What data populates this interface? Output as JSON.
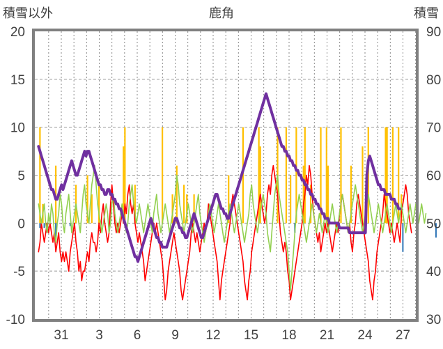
{
  "chart_data": {
    "type": "line",
    "title": "鹿角",
    "left_axis_label": "積雪以外",
    "right_axis_label": "積雪",
    "left_ylim": [
      -10,
      20
    ],
    "right_ylim": [
      30,
      90
    ],
    "left_yticks": [
      20,
      15,
      10,
      5,
      0,
      -5,
      -10
    ],
    "right_yticks": [
      90,
      80,
      70,
      60,
      50,
      40,
      30
    ],
    "x_ticks": [
      "31",
      "3",
      "6",
      "9",
      "12",
      "15",
      "18",
      "21",
      "24",
      "27"
    ],
    "grid": "dashed horizontal at major ticks, dotted vertical daily",
    "colors": {
      "snowfall": "#FFC000",
      "precipitation": "#2E75B6",
      "temp_max": "#FF0000",
      "temp_mean": "#92D050",
      "snow_depth": "#7030A0"
    },
    "series": [
      {
        "key": "snowfall",
        "type": "bar",
        "axis": "left",
        "values": [
          0,
          10,
          0,
          2,
          0,
          0,
          0,
          0,
          0,
          0,
          0,
          0,
          6,
          0,
          0,
          0,
          0,
          0,
          0,
          0,
          0,
          0,
          0,
          0,
          0,
          0,
          4,
          0,
          0,
          0,
          0,
          0,
          0,
          0,
          5,
          0,
          0,
          3,
          0,
          0,
          0,
          0,
          4,
          0,
          0,
          0,
          0,
          0,
          0,
          0,
          0,
          0,
          0,
          0,
          0,
          0,
          0,
          0,
          0,
          8,
          10,
          0,
          0,
          0,
          0,
          0,
          0,
          4,
          0,
          0,
          0,
          0,
          0,
          0,
          0,
          0,
          0,
          0,
          0,
          0,
          0,
          0,
          0,
          0,
          0,
          0,
          10,
          0,
          0,
          0,
          0,
          0,
          0,
          3,
          0,
          0,
          6,
          0,
          0,
          0,
          0,
          4,
          0,
          3,
          0,
          0,
          0,
          0,
          3,
          0,
          0,
          0,
          0,
          0,
          0,
          0,
          0,
          0,
          0,
          0,
          0,
          0,
          0,
          0,
          0,
          0,
          0,
          0,
          0,
          0,
          0,
          0,
          5,
          0,
          0,
          0,
          0,
          0,
          0,
          0,
          0,
          0,
          10,
          0,
          0,
          0,
          0,
          0,
          0,
          0,
          0,
          0,
          0,
          10,
          8,
          0,
          0,
          0,
          0,
          0,
          0,
          0,
          0,
          0,
          0,
          0,
          10,
          0,
          0,
          0,
          0,
          0,
          10,
          0,
          0,
          5,
          0,
          0,
          0,
          10,
          0,
          0,
          0,
          0,
          6,
          10,
          0,
          0,
          0,
          4,
          0,
          0,
          0,
          0,
          0,
          0,
          10,
          0,
          0,
          0,
          10,
          6,
          0,
          0,
          0,
          0,
          0,
          0,
          0,
          0,
          10,
          0,
          0,
          0,
          0,
          0,
          0,
          6,
          0,
          0,
          0,
          0,
          0,
          0,
          0,
          8,
          0,
          0,
          0,
          10,
          0,
          0,
          0,
          0,
          0,
          0,
          0,
          0,
          0,
          0,
          0,
          10,
          10,
          0,
          0,
          0,
          10,
          0,
          0,
          0,
          10,
          0,
          3,
          0,
          0,
          0,
          0,
          0,
          0,
          0,
          0,
          0
        ]
      },
      {
        "key": "precipitation",
        "type": "bar",
        "axis": "left",
        "values": [
          0,
          -0.5,
          0,
          0,
          -0.5,
          0,
          -1,
          0,
          0,
          0,
          0,
          0,
          -1.8,
          0,
          0,
          0,
          0,
          0,
          0,
          0,
          0,
          0,
          -0.3,
          0,
          0,
          0,
          0,
          0,
          0,
          0,
          0,
          0,
          0,
          0,
          0,
          0,
          0,
          0,
          0,
          0,
          0,
          0,
          0,
          0,
          0,
          0,
          0,
          0,
          0,
          0,
          0,
          0,
          0,
          0,
          0,
          0,
          0,
          0,
          0,
          0,
          0,
          0,
          0,
          0,
          0,
          0,
          0,
          0,
          0,
          0,
          0,
          0,
          0,
          0,
          0,
          0,
          0,
          0,
          0,
          0,
          -0.6,
          0,
          0,
          0,
          0,
          0,
          0,
          0,
          0,
          0,
          0,
          0,
          0,
          0,
          0,
          0,
          0,
          0,
          0,
          0,
          0,
          0,
          0,
          0,
          0,
          0,
          0,
          0,
          0,
          0,
          0,
          0,
          0,
          0,
          0,
          0,
          0,
          0,
          0,
          0,
          0,
          0,
          0,
          0,
          0,
          0,
          0,
          0,
          0,
          0,
          0,
          0,
          0,
          0,
          0,
          0,
          0,
          0,
          0,
          0,
          0,
          0,
          0,
          0,
          0,
          0,
          0,
          0,
          0,
          0,
          0,
          0,
          0,
          0,
          0,
          0,
          0,
          0,
          0,
          0,
          0,
          0,
          0,
          0,
          0,
          0,
          0,
          0,
          0,
          0,
          0,
          0,
          0,
          0,
          0,
          0,
          0,
          0,
          -1,
          0,
          0,
          0,
          0,
          0,
          0,
          0,
          0,
          0,
          0,
          0,
          0,
          0,
          0,
          0,
          0,
          0,
          0,
          0,
          0,
          0,
          0,
          0,
          0,
          0,
          0,
          0,
          0,
          0,
          0,
          0,
          0,
          0,
          0,
          0,
          0,
          0,
          0,
          0,
          0,
          0,
          0,
          0,
          0,
          0,
          0,
          0,
          0,
          0,
          0,
          0,
          0,
          0,
          0,
          0,
          0,
          0,
          0,
          0,
          0,
          0,
          0,
          0,
          0,
          0,
          0,
          0,
          0,
          0,
          0,
          0,
          0,
          0,
          0,
          -3,
          0,
          0,
          0,
          0,
          0,
          0,
          0,
          0,
          0,
          0,
          0,
          0,
          0,
          0,
          0,
          0,
          0,
          0,
          0,
          0,
          0,
          0,
          -1.5
        ]
      },
      {
        "key": "temp_max",
        "type": "line",
        "axis": "left",
        "values": [
          -3,
          -2,
          0,
          -1,
          -2,
          -1,
          0,
          -1,
          0,
          -1,
          -2,
          -1,
          -3,
          -2,
          -1,
          -3,
          -4,
          -3,
          -4,
          -3,
          -4,
          -5,
          -3,
          -2,
          -1,
          0,
          -2,
          -3,
          -5,
          -4,
          -6,
          -5,
          -5,
          -4,
          -3,
          -4,
          -2,
          -1,
          -2,
          -2,
          -3,
          -2,
          0,
          -1,
          1,
          2,
          0,
          -1,
          -2,
          -1,
          2,
          4,
          2,
          0,
          -1,
          0,
          -1,
          0,
          1,
          0,
          2,
          1,
          3,
          4,
          2,
          1,
          2,
          0,
          -1,
          -2,
          -1,
          -2,
          -3,
          -4,
          -6,
          -5,
          -4,
          -3,
          -2,
          -1,
          0,
          -1,
          0,
          -1,
          -2,
          -3,
          -4,
          -6,
          -8,
          -7,
          -5,
          -4,
          -3,
          -2,
          -1,
          -2,
          -3,
          -4,
          -5,
          -7,
          -8,
          -7,
          -6,
          -5,
          -4,
          -3,
          -1,
          0,
          -1,
          -2,
          -1,
          -2,
          -3,
          -2,
          -1,
          0,
          -1,
          0,
          2,
          1,
          0,
          -1,
          -2,
          -3,
          -4,
          -6,
          -8,
          -6,
          -5,
          -4,
          -3,
          -2,
          -1,
          0,
          2,
          3,
          2,
          1,
          0,
          -1,
          -2,
          -3,
          -4,
          -6,
          -7,
          -8,
          -6,
          -5,
          -3,
          -2,
          -1,
          0,
          1,
          2,
          3,
          2,
          1,
          0,
          1,
          3,
          4,
          3,
          5,
          6,
          5,
          4,
          3,
          1,
          -1,
          -2,
          -3,
          -2,
          -3,
          -5,
          -6,
          -8,
          -7,
          -6,
          -5,
          -4,
          -3,
          -2,
          -1,
          0,
          2,
          3,
          5,
          4,
          6,
          5,
          3,
          1,
          0,
          -1,
          -2,
          -1,
          -3,
          -2,
          -1,
          0,
          -1,
          0,
          -1,
          -2,
          -3,
          -2,
          -1,
          0,
          -1,
          1,
          2,
          3,
          2,
          1,
          0,
          -1,
          0,
          -2,
          -3,
          -1,
          0,
          2,
          3,
          2,
          1,
          0,
          -1,
          -2,
          -3,
          -4,
          -6,
          -7,
          -8,
          -6,
          -5,
          -3,
          -2,
          -1,
          0,
          1,
          3,
          2,
          1,
          0,
          -1,
          0,
          -1,
          -2,
          -1,
          0,
          -1,
          -2,
          1,
          2,
          3,
          4,
          3,
          1,
          0,
          -1
        ]
      },
      {
        "key": "temp_mean",
        "type": "line",
        "axis": "left",
        "values": [
          2,
          1,
          0,
          1,
          2,
          0,
          -1,
          1,
          0,
          2,
          1,
          -1,
          -2,
          0,
          1,
          3,
          2,
          0,
          -1,
          1,
          2,
          3,
          1,
          -1,
          0,
          1,
          2,
          1,
          0,
          -1,
          1,
          3,
          4,
          2,
          1,
          0,
          2,
          4,
          5,
          6,
          4,
          2,
          1,
          0,
          -1,
          0,
          1,
          2,
          1,
          -1,
          0,
          2,
          3,
          1,
          0,
          -1,
          0,
          1,
          2,
          1,
          0,
          -1,
          0,
          2,
          3,
          4,
          2,
          1,
          0,
          1,
          2,
          1,
          0,
          -1,
          0,
          1,
          2,
          1,
          0,
          -1,
          1,
          2,
          3,
          1,
          0,
          -1,
          0,
          1,
          2,
          1,
          0,
          -1,
          0,
          1,
          2,
          3,
          5,
          4,
          2,
          1,
          0,
          -1,
          0,
          1,
          2,
          1,
          0,
          -1,
          0,
          1,
          2,
          3,
          1,
          0,
          -1,
          -2,
          -1,
          0,
          1,
          2,
          1,
          0,
          -1,
          0,
          1,
          2,
          1,
          0,
          -1,
          -2,
          -1,
          0,
          1,
          2,
          1,
          0,
          -1,
          0,
          1,
          2,
          1,
          0,
          -1,
          -2,
          -1,
          0,
          1,
          3,
          4,
          2,
          1,
          0,
          -1,
          0,
          1,
          2,
          3,
          2,
          1,
          -1,
          -2,
          -3,
          -1,
          1,
          3,
          4,
          5,
          3,
          2,
          1,
          0,
          -1,
          -2,
          -3,
          -5,
          -7,
          -5,
          -3,
          -1,
          1,
          2,
          3,
          2,
          1,
          0,
          -1,
          -2,
          -1,
          0,
          1,
          2,
          1,
          0,
          -1,
          0,
          1,
          0,
          -1,
          0,
          1,
          0,
          -1,
          0,
          1,
          2,
          1,
          0,
          -1,
          0,
          1,
          2,
          3,
          2,
          1,
          0,
          -1,
          0,
          1,
          2,
          3,
          4,
          3,
          2,
          1,
          0,
          -1,
          0,
          1,
          2,
          3,
          2,
          1,
          0,
          -1,
          0,
          1,
          2,
          1,
          0,
          -1,
          0,
          1,
          2,
          1,
          0,
          -1,
          0,
          1,
          2,
          1,
          0,
          1,
          2,
          1,
          0,
          -1,
          0,
          1,
          2,
          1,
          0,
          1,
          2,
          1,
          0,
          1,
          2,
          1,
          0,
          1
        ]
      },
      {
        "key": "snow_depth",
        "type": "line",
        "axis": "right",
        "values": [
          66,
          65,
          64,
          63,
          62,
          61,
          60,
          59,
          58,
          57,
          57,
          56,
          55,
          55,
          56,
          57,
          58,
          57,
          58,
          59,
          60,
          61,
          62,
          63,
          62,
          61,
          60,
          60,
          61,
          62,
          63,
          64,
          65,
          64,
          65,
          65,
          64,
          63,
          62,
          61,
          60,
          59,
          58,
          58,
          57,
          57,
          56,
          56,
          57,
          57,
          56,
          56,
          55,
          55,
          54,
          54,
          53,
          53,
          52,
          51,
          50,
          49,
          48,
          47,
          46,
          45,
          44,
          43,
          43,
          42,
          43,
          44,
          45,
          46,
          47,
          48,
          49,
          50,
          51,
          50,
          49,
          48,
          47,
          47,
          46,
          46,
          45,
          45,
          45,
          45,
          46,
          47,
          48,
          49,
          50,
          51,
          51,
          50,
          49,
          49,
          48,
          48,
          47,
          47,
          48,
          49,
          50,
          51,
          52,
          51,
          50,
          49,
          48,
          47,
          47,
          48,
          49,
          50,
          51,
          52,
          53,
          54,
          55,
          56,
          56,
          55,
          54,
          53,
          53,
          52,
          52,
          51,
          51,
          52,
          53,
          54,
          55,
          56,
          57,
          58,
          59,
          60,
          61,
          62,
          63,
          64,
          65,
          66,
          67,
          68,
          69,
          70,
          71,
          72,
          73,
          74,
          75,
          76,
          77,
          76,
          75,
          74,
          73,
          72,
          71,
          70,
          69,
          68,
          67,
          66,
          66,
          65,
          65,
          64,
          64,
          63,
          63,
          62,
          62,
          61,
          61,
          60,
          60,
          59,
          59,
          58,
          58,
          57,
          57,
          56,
          56,
          55,
          55,
          54,
          54,
          53,
          53,
          52,
          52,
          51,
          51,
          51,
          50,
          50,
          50,
          50,
          50,
          50,
          50,
          49,
          49,
          49,
          49,
          49,
          49,
          49,
          48,
          48,
          48,
          48,
          48,
          48,
          48,
          48,
          48,
          48,
          48,
          48,
          60,
          63,
          64,
          63,
          62,
          61,
          60,
          59,
          58,
          58,
          57,
          57,
          57,
          56,
          56,
          56,
          56,
          55,
          55,
          55,
          54,
          54,
          53,
          53
        ]
      }
    ]
  }
}
